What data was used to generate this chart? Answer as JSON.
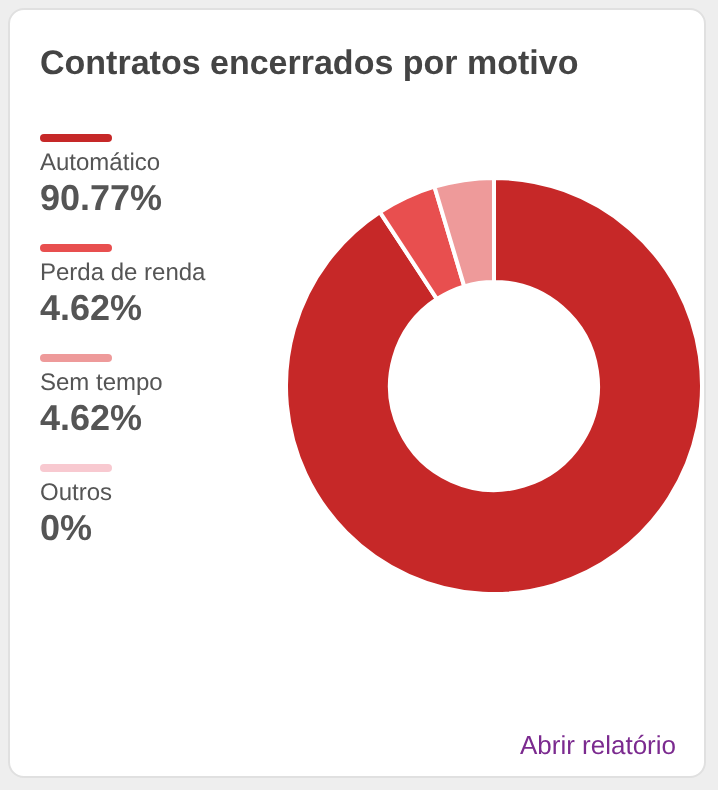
{
  "chart_data": {
    "type": "donut",
    "title": "Contratos encerrados por motivo",
    "categories": [
      "Automático",
      "Perda de renda",
      "Sem tempo",
      "Outros"
    ],
    "values": [
      90.77,
      4.62,
      4.62,
      0
    ],
    "value_labels": [
      "90.77%",
      "4.62%",
      "4.62%",
      "0%"
    ],
    "colors": [
      "#c62828",
      "#e84f4f",
      "#ee9a9a",
      "#f8c9d0"
    ],
    "legend": "left",
    "annotations": [
      "Abrir relatório"
    ]
  }
}
